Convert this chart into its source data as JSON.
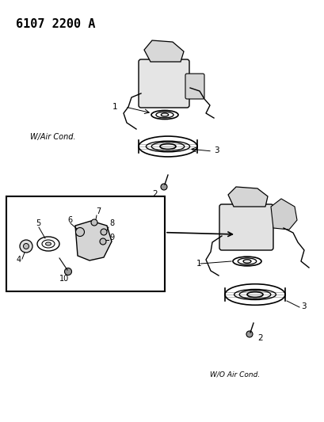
{
  "title": "6107 2200 A",
  "subtitle_top_left": "W/Air Cond.",
  "subtitle_bottom_right": "W/O Air Cond.",
  "bg_color": "#ffffff",
  "text_color": "#000000",
  "line_color": "#000000",
  "part_numbers_top": [
    "1",
    "2",
    "3"
  ],
  "part_numbers_bottom_right": [
    "1",
    "2",
    "3"
  ],
  "part_numbers_exploded": [
    "4",
    "5",
    "6",
    "7",
    "8",
    "9",
    "10"
  ],
  "figsize": [
    4.1,
    5.33
  ],
  "dpi": 100
}
